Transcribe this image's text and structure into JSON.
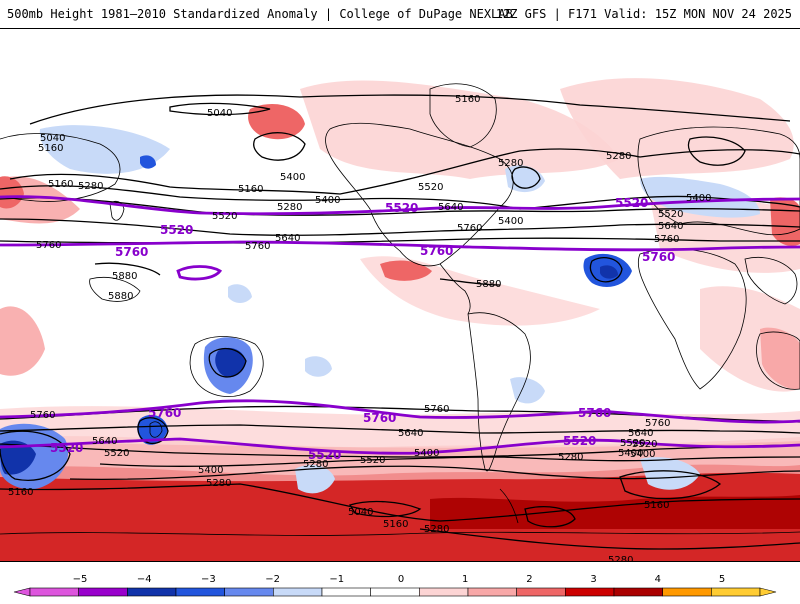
{
  "header": {
    "title_left": "500mb Height 1981–2010 Standardized Anomaly | College of DuPage NEXLAB",
    "title_right": "12Z GFS | F171 Valid: 15Z MON NOV 24 2025"
  },
  "contour_labels": {
    "black": [
      "5040",
      "5160",
      "5040",
      "5280",
      "5400",
      "5160",
      "5280",
      "5400",
      "5520",
      "5640",
      "5760",
      "5880",
      "5880",
      "5520",
      "5280",
      "5640",
      "5760",
      "5400",
      "5880",
      "5160",
      "5280",
      "5520",
      "5400",
      "5640",
      "5760",
      "5760",
      "5640",
      "5520",
      "5400",
      "5280",
      "5160",
      "5640",
      "5760",
      "5400",
      "5280",
      "5520",
      "5520",
      "5400",
      "5280",
      "5160",
      "5040",
      "5160",
      "5280",
      "5280",
      "5760",
      "5640",
      "5520",
      "5400",
      "5160",
      "5760"
    ],
    "purple": [
      "5520",
      "5760",
      "5520",
      "5760",
      "5520",
      "5760",
      "5760",
      "5520",
      "5760",
      "5760",
      "5520",
      "5520"
    ]
  },
  "colorbar": {
    "ticks": [
      "−5",
      "−4",
      "−3",
      "−2",
      "−1",
      "0",
      "1",
      "2",
      "3",
      "4",
      "5"
    ],
    "colors": [
      "#dd55dd",
      "#9900cc",
      "#1133aa",
      "#2255dd",
      "#6688ee",
      "#c8daf8",
      "#ffffff",
      "#ffffff",
      "#fcd4d4",
      "#f8a8a8",
      "#ee6666",
      "#cc0000",
      "#aa0000",
      "#ff9900",
      "#ffcc33"
    ]
  },
  "colors": {
    "land_outline": "#000000",
    "purple_contour": "#8800cc",
    "background": "#ffffff"
  }
}
